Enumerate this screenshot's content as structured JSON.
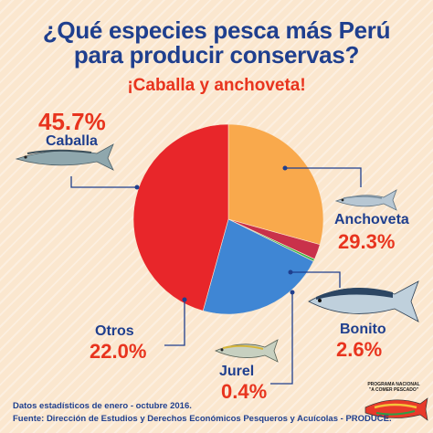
{
  "title_line1": "¿Qué especies pesca más Perú",
  "title_line2": "para producir conservas?",
  "subtitle": "¡Caballa y anchoveta!",
  "labels": {
    "caballa": {
      "name": "Caballa",
      "pct": "45.7%"
    },
    "anchoveta": {
      "name": "Anchoveta",
      "pct": "29.3%"
    },
    "bonito": {
      "name": "Bonito",
      "pct": "2.6%"
    },
    "jurel": {
      "name": "Jurel",
      "pct": "0.4%"
    },
    "otros": {
      "name": "Otros",
      "pct": "22.0%"
    }
  },
  "footer": {
    "line1": "Datos estadísticos de enero - octubre 2016.",
    "line2": "Fuente: Dirección de Estudios y Derechos Económicos Pesqueros  y Acuícolas - PRODUCE."
  },
  "logo": {
    "line1": "PROGRAMA NACIONAL",
    "line2": "\"A COMER PESCADO\""
  },
  "colors": {
    "caballa": "#e8262a",
    "anchoveta": "#f9a94c",
    "bonito": "#c9314a",
    "jurel": "#35b34a",
    "otros": "#3f86d4",
    "title": "#1f3f8e",
    "accent": "#e8341e"
  },
  "chart_data": {
    "type": "pie",
    "title": "¿Qué especies pesca más Perú para producir conservas?",
    "slices": [
      {
        "name": "Anchoveta",
        "value": 29.3,
        "color": "#f9a94c"
      },
      {
        "name": "Bonito",
        "value": 2.6,
        "color": "#c9314a"
      },
      {
        "name": "Jurel",
        "value": 0.4,
        "color": "#35b34a"
      },
      {
        "name": "Otros",
        "value": 22.0,
        "color": "#3f86d4"
      },
      {
        "name": "Caballa",
        "value": 45.7,
        "color": "#e8262a"
      }
    ]
  }
}
